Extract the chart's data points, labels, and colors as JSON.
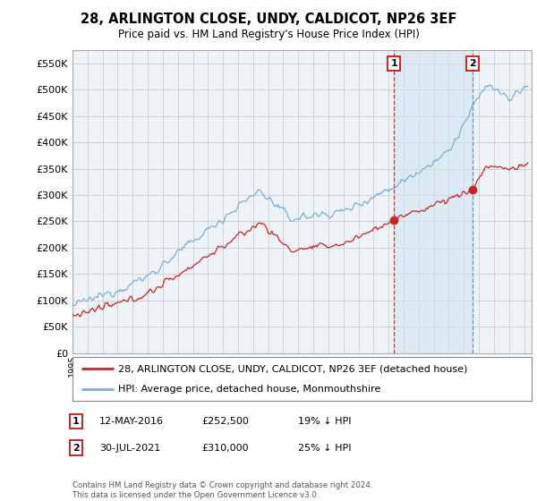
{
  "title": "28, ARLINGTON CLOSE, UNDY, CALDICOT, NP26 3EF",
  "subtitle": "Price paid vs. HM Land Registry's House Price Index (HPI)",
  "ylim": [
    0,
    575000
  ],
  "yticks": [
    0,
    50000,
    100000,
    150000,
    200000,
    250000,
    300000,
    350000,
    400000,
    450000,
    500000,
    550000
  ],
  "xlim_start": 1995.0,
  "xlim_end": 2025.5,
  "sale1_date": 2016.37,
  "sale1_price": 252500,
  "sale1_label": "1",
  "sale2_date": 2021.58,
  "sale2_price": 310000,
  "sale2_label": "2",
  "legend1": "28, ARLINGTON CLOSE, UNDY, CALDICOT, NP26 3EF (detached house)",
  "legend2": "HPI: Average price, detached house, Monmouthshire",
  "footer": "Contains HM Land Registry data © Crown copyright and database right 2024.\nThis data is licensed under the Open Government Licence v3.0.",
  "hpi_color": "#7ab0d4",
  "price_color": "#cc2222",
  "grid_color": "#cccccc",
  "bg_color": "#ffffff",
  "plot_bg": "#eef3f8",
  "shade_color": "#d0e4f0"
}
